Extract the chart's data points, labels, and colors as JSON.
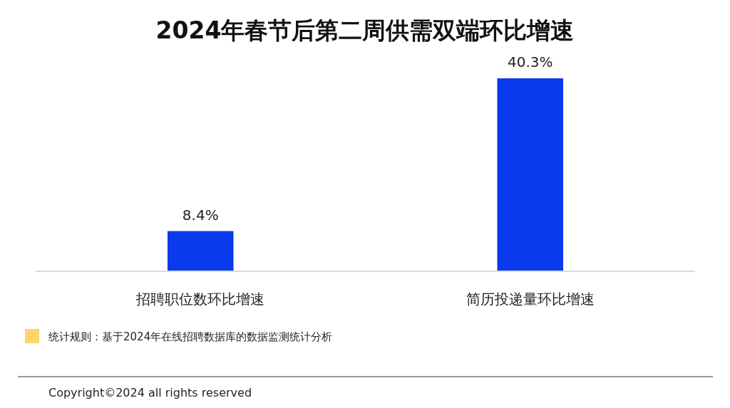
{
  "chart_data": {
    "type": "bar",
    "title": "2024年春节后第二周供需双端环比增速",
    "categories": [
      "招聘职位数环比增速",
      "简历投递量环比增速"
    ],
    "values": [
      8.4,
      40.3
    ],
    "color": "#0a3aee",
    "value_labels": [
      "8.4%",
      "40.3%"
    ],
    "annotations": [
      "统计规则：基于2024年在线招聘数据库的数据监测统计分析",
      "Copyright©2024 all rights reserved"
    ]
  }
}
